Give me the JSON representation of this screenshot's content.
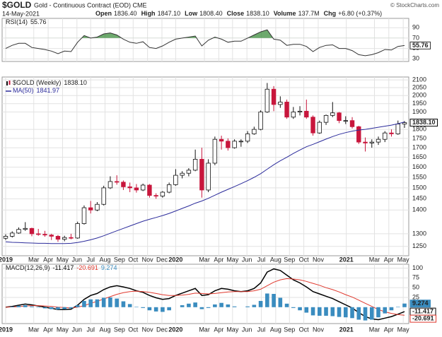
{
  "header": {
    "symbol": "$GOLD",
    "name": "Gold - Continuous Contract (EOD) CME",
    "date": "14-May-2021",
    "quote": [
      [
        "Open",
        "1836.40"
      ],
      [
        "High",
        "1847.10"
      ],
      [
        "Low",
        "1808.40"
      ],
      [
        "Close",
        "1838.10"
      ],
      [
        "Volume",
        "137.7M"
      ],
      [
        "Chg",
        "+6.80 (+0.37%)"
      ]
    ],
    "copyright": "© StockCharts.com"
  },
  "chart_data": [
    {
      "type": "line",
      "series": [
        {
          "name": "RSI(14)",
          "color": "#333333",
          "values": [
            50,
            56,
            60,
            60,
            52,
            50,
            48,
            45,
            40,
            45,
            44,
            62,
            75,
            70,
            72,
            78,
            80,
            76,
            68,
            62,
            60,
            63,
            52,
            50,
            55,
            62,
            68,
            70,
            72,
            74,
            55,
            66,
            72,
            68,
            62,
            64,
            64,
            70,
            76,
            82,
            86,
            68,
            66,
            56,
            58,
            58,
            54,
            44,
            52,
            56,
            57,
            50,
            50,
            46,
            38,
            36,
            38,
            42,
            48,
            47,
            54,
            55.76
          ]
        }
      ],
      "ylim": [
        25,
        108
      ],
      "yticks": [
        30,
        50,
        70,
        90
      ],
      "grid": true,
      "overbought": 70,
      "overbought_color": "#3c8c3c"
    },
    {
      "type": "candlestick",
      "name": "$GOLD (Weekly)",
      "last_label": "1838.10",
      "up_color": "#111111",
      "down_color": "#c8163c",
      "candles": [
        [
          1282,
          1298,
          1275,
          1290
        ],
        [
          1290,
          1310,
          1285,
          1303
        ],
        [
          1303,
          1326,
          1300,
          1318
        ],
        [
          1318,
          1348,
          1312,
          1322
        ],
        [
          1322,
          1325,
          1290,
          1300
        ],
        [
          1300,
          1320,
          1292,
          1298
        ],
        [
          1298,
          1312,
          1288,
          1295
        ],
        [
          1295,
          1300,
          1275,
          1290
        ],
        [
          1290,
          1295,
          1268,
          1278
        ],
        [
          1278,
          1292,
          1270,
          1285
        ],
        [
          1285,
          1300,
          1278,
          1283
        ],
        [
          1283,
          1350,
          1280,
          1342
        ],
        [
          1342,
          1420,
          1338,
          1410
        ],
        [
          1410,
          1440,
          1385,
          1400
        ],
        [
          1400,
          1435,
          1395,
          1425
        ],
        [
          1425,
          1510,
          1420,
          1500
        ],
        [
          1500,
          1555,
          1495,
          1530
        ],
        [
          1530,
          1560,
          1515,
          1527
        ],
        [
          1527,
          1535,
          1490,
          1505
        ],
        [
          1505,
          1525,
          1480,
          1500
        ],
        [
          1500,
          1518,
          1478,
          1490
        ],
        [
          1490,
          1520,
          1485,
          1513
        ],
        [
          1513,
          1518,
          1455,
          1465
        ],
        [
          1465,
          1475,
          1450,
          1462
        ],
        [
          1462,
          1485,
          1455,
          1480
        ],
        [
          1480,
          1525,
          1475,
          1515
        ],
        [
          1515,
          1590,
          1510,
          1560
        ],
        [
          1560,
          1580,
          1545,
          1570
        ],
        [
          1570,
          1595,
          1555,
          1585
        ],
        [
          1585,
          1690,
          1580,
          1640
        ],
        [
          1640,
          1700,
          1455,
          1490
        ],
        [
          1490,
          1640,
          1480,
          1620
        ],
        [
          1620,
          1760,
          1610,
          1745
        ],
        [
          1745,
          1765,
          1690,
          1735
        ],
        [
          1735,
          1750,
          1685,
          1700
        ],
        [
          1700,
          1745,
          1695,
          1735
        ],
        [
          1735,
          1745,
          1705,
          1735
        ],
        [
          1735,
          1790,
          1725,
          1775
        ],
        [
          1775,
          1815,
          1770,
          1800
        ],
        [
          1800,
          1910,
          1795,
          1900
        ],
        [
          1900,
          2080,
          1895,
          2040
        ],
        [
          2040,
          2060,
          1905,
          1945
        ],
        [
          1945,
          1995,
          1925,
          1960
        ],
        [
          1960,
          1975,
          1860,
          1870
        ],
        [
          1870,
          1930,
          1860,
          1900
        ],
        [
          1900,
          1935,
          1880,
          1905
        ],
        [
          1905,
          1975,
          1860,
          1870
        ],
        [
          1870,
          1880,
          1765,
          1780
        ],
        [
          1780,
          1850,
          1775,
          1840
        ],
        [
          1840,
          1885,
          1825,
          1880
        ],
        [
          1880,
          1960,
          1870,
          1895
        ],
        [
          1895,
          1900,
          1835,
          1850
        ],
        [
          1850,
          1875,
          1830,
          1850
        ],
        [
          1850,
          1870,
          1805,
          1815
        ],
        [
          1815,
          1820,
          1720,
          1730
        ],
        [
          1730,
          1755,
          1680,
          1725
        ],
        [
          1725,
          1745,
          1700,
          1730
        ],
        [
          1730,
          1760,
          1715,
          1745
        ],
        [
          1745,
          1790,
          1730,
          1780
        ],
        [
          1780,
          1800,
          1760,
          1775
        ],
        [
          1775,
          1850,
          1770,
          1830
        ],
        [
          1830,
          1847.1,
          1808.4,
          1838.1
        ]
      ],
      "series": [
        {
          "name": "MA(50)",
          "color": "#2b2b9b",
          "values": [
            1268,
            1266,
            1265,
            1264,
            1263,
            1262,
            1262,
            1261,
            1261,
            1261,
            1262,
            1265,
            1270,
            1276,
            1283,
            1292,
            1302,
            1312,
            1322,
            1332,
            1342,
            1352,
            1360,
            1368,
            1376,
            1385,
            1396,
            1407,
            1418,
            1430,
            1440,
            1452,
            1466,
            1480,
            1493,
            1506,
            1520,
            1534,
            1550,
            1568,
            1590,
            1612,
            1632,
            1650,
            1670,
            1688,
            1705,
            1718,
            1732,
            1746,
            1760,
            1772,
            1782,
            1790,
            1796,
            1800,
            1806,
            1812,
            1818,
            1824,
            1832,
            1841.97
          ]
        }
      ],
      "ylim": [
        1214,
        2119
      ],
      "log": true,
      "grid": true,
      "yticks": [
        1250,
        1300,
        1400,
        1450,
        1500,
        1550,
        1600,
        1650,
        1700,
        1750,
        1800,
        1900,
        1950,
        2000,
        2050,
        2100
      ],
      "xticks": [
        {
          "value": 0,
          "label": "2019"
        },
        {
          "value": 4.3,
          "label": "Mar"
        },
        {
          "value": 6.5,
          "label": "Apr"
        },
        {
          "value": 8.7,
          "label": "May"
        },
        {
          "value": 10.9,
          "label": "Jun"
        },
        {
          "value": 13,
          "label": "Jul"
        },
        {
          "value": 15.2,
          "label": "Aug"
        },
        {
          "value": 17.4,
          "label": "Sep"
        },
        {
          "value": 19.5,
          "label": "Oct"
        },
        {
          "value": 21.7,
          "label": "Nov"
        },
        {
          "value": 23.9,
          "label": "Dec"
        },
        {
          "value": 26,
          "label": "2020"
        },
        {
          "value": 30.4,
          "label": "Mar"
        },
        {
          "value": 32.6,
          "label": "Apr"
        },
        {
          "value": 34.7,
          "label": "May"
        },
        {
          "value": 36.9,
          "label": "Jun"
        },
        {
          "value": 39.1,
          "label": "Jul"
        },
        {
          "value": 41.3,
          "label": "Aug"
        },
        {
          "value": 43.4,
          "label": "Sep"
        },
        {
          "value": 45.6,
          "label": "Oct"
        },
        {
          "value": 47.8,
          "label": "Nov"
        },
        {
          "value": 52.1,
          "label": "2021"
        },
        {
          "value": 56.4,
          "label": "Mar"
        },
        {
          "value": 58.6,
          "label": "Apr"
        },
        {
          "value": 60.8,
          "label": "May"
        }
      ]
    },
    {
      "type": "macd",
      "name": "MACD(12,26,9)",
      "ylim": [
        -42,
        110
      ],
      "yticks": [
        25,
        50,
        75,
        100
      ],
      "grid": true,
      "series": [
        {
          "kind": "line",
          "color": "#000000",
          "values": [
            0,
            2,
            5,
            8,
            6,
            3,
            0,
            -3,
            -6,
            -6,
            -5,
            5,
            20,
            30,
            35,
            45,
            52,
            55,
            52,
            48,
            42,
            38,
            30,
            24,
            20,
            22,
            30,
            36,
            42,
            48,
            30,
            32,
            42,
            48,
            46,
            42,
            40,
            42,
            48,
            62,
            90,
            98,
            94,
            82,
            70,
            62,
            52,
            40,
            34,
            28,
            22,
            14,
            6,
            -2,
            -14,
            -24,
            -30,
            -32,
            -28,
            -24,
            -18,
            -11.417
          ]
        },
        {
          "kind": "line",
          "color": "#e0392e",
          "values": [
            0,
            0.5,
            1.5,
            3,
            4,
            4,
            3,
            2,
            0,
            -1,
            -2,
            0,
            4,
            10,
            15,
            21,
            27,
            33,
            37,
            40,
            41,
            40,
            38,
            35,
            32,
            30,
            30,
            31,
            33,
            36,
            35,
            34,
            35,
            37,
            39,
            40,
            40,
            40,
            42,
            46,
            55,
            64,
            70,
            73,
            72,
            70,
            66,
            61,
            56,
            50,
            45,
            39,
            32,
            26,
            18,
            10,
            2,
            -6,
            -12,
            -16,
            -19,
            -20.691
          ]
        },
        {
          "kind": "bar",
          "color": "#3a8cbf",
          "values": [
            0,
            1.5,
            3.5,
            5,
            2,
            -1,
            -3,
            -5,
            -6,
            -5,
            -3,
            5,
            16,
            20,
            20,
            24,
            25,
            22,
            15,
            8,
            1,
            -2,
            -8,
            -11,
            -12,
            -8,
            0,
            5,
            9,
            12,
            -5,
            -2,
            7,
            11,
            7,
            2,
            0,
            2,
            6,
            16,
            35,
            34,
            24,
            9,
            -2,
            -8,
            -14,
            -21,
            -22,
            -22,
            -23,
            -25,
            -26,
            -28,
            -32,
            -34,
            -32,
            -26,
            -16,
            -8,
            1,
            9.274
          ]
        }
      ]
    }
  ]
}
